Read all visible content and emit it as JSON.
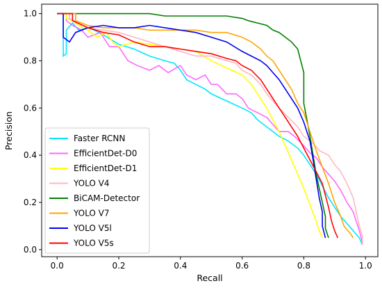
{
  "chart_data": {
    "type": "line",
    "xlabel": "Recall",
    "ylabel": "Precision",
    "xlim": [
      -0.05,
      1.04
    ],
    "ylim": [
      -0.03,
      1.04
    ],
    "x_ticks": [
      "0.0",
      "0.2",
      "0.4",
      "0.6",
      "0.8",
      "1.0"
    ],
    "y_ticks": [
      "0.0",
      "0.2",
      "0.4",
      "0.6",
      "0.8",
      "1.0"
    ],
    "grid": false,
    "legend_position": "lower-left",
    "series": [
      {
        "name": "Faster RCNN",
        "color": "#00e5ff",
        "points": [
          [
            0.0,
            1.0
          ],
          [
            0.02,
            1.0
          ],
          [
            0.02,
            0.82
          ],
          [
            0.03,
            0.83
          ],
          [
            0.03,
            0.93
          ],
          [
            0.05,
            0.96
          ],
          [
            0.07,
            0.93
          ],
          [
            0.1,
            0.94
          ],
          [
            0.12,
            0.93
          ],
          [
            0.15,
            0.91
          ],
          [
            0.2,
            0.87
          ],
          [
            0.25,
            0.85
          ],
          [
            0.3,
            0.82
          ],
          [
            0.35,
            0.8
          ],
          [
            0.38,
            0.79
          ],
          [
            0.4,
            0.76
          ],
          [
            0.42,
            0.72
          ],
          [
            0.45,
            0.7
          ],
          [
            0.48,
            0.68
          ],
          [
            0.5,
            0.66
          ],
          [
            0.55,
            0.63
          ],
          [
            0.6,
            0.6
          ],
          [
            0.63,
            0.58
          ],
          [
            0.65,
            0.55
          ],
          [
            0.68,
            0.52
          ],
          [
            0.7,
            0.5
          ],
          [
            0.72,
            0.48
          ],
          [
            0.75,
            0.46
          ],
          [
            0.78,
            0.43
          ],
          [
            0.8,
            0.4
          ],
          [
            0.82,
            0.36
          ],
          [
            0.84,
            0.32
          ],
          [
            0.86,
            0.27
          ],
          [
            0.88,
            0.22
          ],
          [
            0.9,
            0.18
          ],
          [
            0.92,
            0.14
          ],
          [
            0.94,
            0.11
          ],
          [
            0.96,
            0.08
          ],
          [
            0.98,
            0.05
          ],
          [
            0.99,
            0.02
          ]
        ]
      },
      {
        "name": "EfficientDet-D0",
        "color": "#ff66ff",
        "points": [
          [
            0.0,
            1.0
          ],
          [
            0.03,
            1.0
          ],
          [
            0.03,
            0.97
          ],
          [
            0.05,
            0.95
          ],
          [
            0.08,
            0.93
          ],
          [
            0.1,
            0.9
          ],
          [
            0.14,
            0.92
          ],
          [
            0.17,
            0.86
          ],
          [
            0.2,
            0.86
          ],
          [
            0.23,
            0.8
          ],
          [
            0.26,
            0.78
          ],
          [
            0.3,
            0.76
          ],
          [
            0.33,
            0.78
          ],
          [
            0.36,
            0.75
          ],
          [
            0.4,
            0.78
          ],
          [
            0.42,
            0.74
          ],
          [
            0.45,
            0.72
          ],
          [
            0.48,
            0.74
          ],
          [
            0.5,
            0.7
          ],
          [
            0.52,
            0.7
          ],
          [
            0.55,
            0.66
          ],
          [
            0.58,
            0.66
          ],
          [
            0.6,
            0.64
          ],
          [
            0.62,
            0.6
          ],
          [
            0.65,
            0.58
          ],
          [
            0.68,
            0.56
          ],
          [
            0.7,
            0.53
          ],
          [
            0.72,
            0.5
          ],
          [
            0.75,
            0.5
          ],
          [
            0.77,
            0.48
          ],
          [
            0.8,
            0.44
          ],
          [
            0.82,
            0.41
          ],
          [
            0.84,
            0.39
          ],
          [
            0.86,
            0.35
          ],
          [
            0.88,
            0.32
          ],
          [
            0.9,
            0.29
          ],
          [
            0.92,
            0.25
          ],
          [
            0.94,
            0.2
          ],
          [
            0.96,
            0.16
          ],
          [
            0.97,
            0.12
          ],
          [
            0.98,
            0.08
          ],
          [
            0.99,
            0.03
          ]
        ]
      },
      {
        "name": "EfficientDet-D1",
        "color": "#ffff00",
        "points": [
          [
            0.0,
            1.0
          ],
          [
            0.03,
            1.0
          ],
          [
            0.03,
            0.98
          ],
          [
            0.05,
            0.97
          ],
          [
            0.07,
            0.95
          ],
          [
            0.1,
            0.93
          ],
          [
            0.13,
            0.9
          ],
          [
            0.16,
            0.92
          ],
          [
            0.18,
            0.88
          ],
          [
            0.2,
            0.86
          ],
          [
            0.25,
            0.88
          ],
          [
            0.3,
            0.87
          ],
          [
            0.35,
            0.86
          ],
          [
            0.4,
            0.85
          ],
          [
            0.45,
            0.84
          ],
          [
            0.5,
            0.8
          ],
          [
            0.55,
            0.77
          ],
          [
            0.6,
            0.74
          ],
          [
            0.63,
            0.7
          ],
          [
            0.65,
            0.66
          ],
          [
            0.68,
            0.6
          ],
          [
            0.7,
            0.55
          ],
          [
            0.72,
            0.5
          ],
          [
            0.74,
            0.44
          ],
          [
            0.76,
            0.38
          ],
          [
            0.78,
            0.32
          ],
          [
            0.8,
            0.26
          ],
          [
            0.82,
            0.19
          ],
          [
            0.84,
            0.12
          ],
          [
            0.85,
            0.08
          ],
          [
            0.86,
            0.05
          ]
        ]
      },
      {
        "name": "YOLO V4",
        "color": "#ffb6c1",
        "points": [
          [
            0.0,
            1.0
          ],
          [
            0.04,
            1.0
          ],
          [
            0.04,
            0.98
          ],
          [
            0.07,
            0.96
          ],
          [
            0.1,
            0.94
          ],
          [
            0.15,
            0.93
          ],
          [
            0.2,
            0.92
          ],
          [
            0.25,
            0.9
          ],
          [
            0.3,
            0.88
          ],
          [
            0.35,
            0.86
          ],
          [
            0.4,
            0.84
          ],
          [
            0.45,
            0.82
          ],
          [
            0.5,
            0.82
          ],
          [
            0.55,
            0.8
          ],
          [
            0.58,
            0.79
          ],
          [
            0.6,
            0.76
          ],
          [
            0.63,
            0.74
          ],
          [
            0.66,
            0.7
          ],
          [
            0.68,
            0.66
          ],
          [
            0.7,
            0.63
          ],
          [
            0.72,
            0.6
          ],
          [
            0.75,
            0.56
          ],
          [
            0.78,
            0.52
          ],
          [
            0.8,
            0.48
          ],
          [
            0.83,
            0.45
          ],
          [
            0.85,
            0.42
          ],
          [
            0.88,
            0.4
          ],
          [
            0.9,
            0.36
          ],
          [
            0.92,
            0.33
          ],
          [
            0.94,
            0.28
          ],
          [
            0.96,
            0.22
          ],
          [
            0.97,
            0.16
          ],
          [
            0.98,
            0.1
          ],
          [
            0.99,
            0.06
          ],
          [
            0.99,
            0.02
          ]
        ]
      },
      {
        "name": "BiCAM-Detector",
        "color": "#007f00",
        "points": [
          [
            0.0,
            1.0
          ],
          [
            0.3,
            1.0
          ],
          [
            0.35,
            0.99
          ],
          [
            0.45,
            0.99
          ],
          [
            0.55,
            0.99
          ],
          [
            0.6,
            0.98
          ],
          [
            0.62,
            0.97
          ],
          [
            0.65,
            0.96
          ],
          [
            0.68,
            0.95
          ],
          [
            0.7,
            0.93
          ],
          [
            0.72,
            0.92
          ],
          [
            0.74,
            0.9
          ],
          [
            0.76,
            0.88
          ],
          [
            0.78,
            0.85
          ],
          [
            0.79,
            0.8
          ],
          [
            0.8,
            0.75
          ],
          [
            0.8,
            0.62
          ],
          [
            0.81,
            0.55
          ],
          [
            0.82,
            0.48
          ],
          [
            0.83,
            0.4
          ],
          [
            0.84,
            0.32
          ],
          [
            0.85,
            0.26
          ],
          [
            0.86,
            0.2
          ],
          [
            0.87,
            0.14
          ],
          [
            0.87,
            0.09
          ],
          [
            0.88,
            0.05
          ]
        ]
      },
      {
        "name": "YOLO V7",
        "color": "#ffa500",
        "points": [
          [
            0.0,
            1.0
          ],
          [
            0.06,
            1.0
          ],
          [
            0.06,
            0.97
          ],
          [
            0.1,
            0.95
          ],
          [
            0.15,
            0.94
          ],
          [
            0.2,
            0.94
          ],
          [
            0.25,
            0.94
          ],
          [
            0.3,
            0.93
          ],
          [
            0.35,
            0.93
          ],
          [
            0.4,
            0.93
          ],
          [
            0.45,
            0.93
          ],
          [
            0.5,
            0.92
          ],
          [
            0.55,
            0.92
          ],
          [
            0.6,
            0.9
          ],
          [
            0.63,
            0.88
          ],
          [
            0.66,
            0.85
          ],
          [
            0.68,
            0.82
          ],
          [
            0.7,
            0.8
          ],
          [
            0.72,
            0.76
          ],
          [
            0.74,
            0.72
          ],
          [
            0.76,
            0.68
          ],
          [
            0.78,
            0.62
          ],
          [
            0.8,
            0.58
          ],
          [
            0.82,
            0.5
          ],
          [
            0.84,
            0.42
          ],
          [
            0.86,
            0.35
          ],
          [
            0.88,
            0.28
          ],
          [
            0.9,
            0.2
          ],
          [
            0.92,
            0.14
          ],
          [
            0.93,
            0.1
          ],
          [
            0.95,
            0.07
          ],
          [
            0.96,
            0.05
          ]
        ]
      },
      {
        "name": "YOLO V5l",
        "color": "#0000ee",
        "points": [
          [
            0.0,
            1.0
          ],
          [
            0.02,
            1.0
          ],
          [
            0.02,
            0.9
          ],
          [
            0.04,
            0.88
          ],
          [
            0.06,
            0.92
          ],
          [
            0.1,
            0.94
          ],
          [
            0.15,
            0.95
          ],
          [
            0.2,
            0.94
          ],
          [
            0.25,
            0.94
          ],
          [
            0.3,
            0.95
          ],
          [
            0.35,
            0.94
          ],
          [
            0.4,
            0.93
          ],
          [
            0.45,
            0.92
          ],
          [
            0.5,
            0.9
          ],
          [
            0.55,
            0.88
          ],
          [
            0.6,
            0.84
          ],
          [
            0.63,
            0.82
          ],
          [
            0.66,
            0.8
          ],
          [
            0.68,
            0.78
          ],
          [
            0.7,
            0.75
          ],
          [
            0.72,
            0.72
          ],
          [
            0.74,
            0.68
          ],
          [
            0.76,
            0.64
          ],
          [
            0.78,
            0.6
          ],
          [
            0.8,
            0.54
          ],
          [
            0.82,
            0.46
          ],
          [
            0.83,
            0.38
          ],
          [
            0.84,
            0.3
          ],
          [
            0.85,
            0.22
          ],
          [
            0.86,
            0.16
          ],
          [
            0.86,
            0.1
          ],
          [
            0.87,
            0.05
          ]
        ]
      },
      {
        "name": "YOLO V5s",
        "color": "#ff0000",
        "points": [
          [
            0.0,
            1.0
          ],
          [
            0.05,
            1.0
          ],
          [
            0.05,
            0.97
          ],
          [
            0.1,
            0.94
          ],
          [
            0.15,
            0.92
          ],
          [
            0.2,
            0.91
          ],
          [
            0.25,
            0.88
          ],
          [
            0.3,
            0.86
          ],
          [
            0.35,
            0.86
          ],
          [
            0.4,
            0.85
          ],
          [
            0.45,
            0.84
          ],
          [
            0.5,
            0.83
          ],
          [
            0.55,
            0.81
          ],
          [
            0.58,
            0.8
          ],
          [
            0.6,
            0.78
          ],
          [
            0.63,
            0.76
          ],
          [
            0.66,
            0.72
          ],
          [
            0.68,
            0.68
          ],
          [
            0.7,
            0.64
          ],
          [
            0.72,
            0.6
          ],
          [
            0.74,
            0.56
          ],
          [
            0.76,
            0.52
          ],
          [
            0.78,
            0.48
          ],
          [
            0.8,
            0.43
          ],
          [
            0.82,
            0.38
          ],
          [
            0.84,
            0.33
          ],
          [
            0.86,
            0.28
          ],
          [
            0.87,
            0.23
          ],
          [
            0.88,
            0.18
          ],
          [
            0.89,
            0.12
          ],
          [
            0.9,
            0.08
          ],
          [
            0.91,
            0.05
          ]
        ]
      }
    ]
  }
}
